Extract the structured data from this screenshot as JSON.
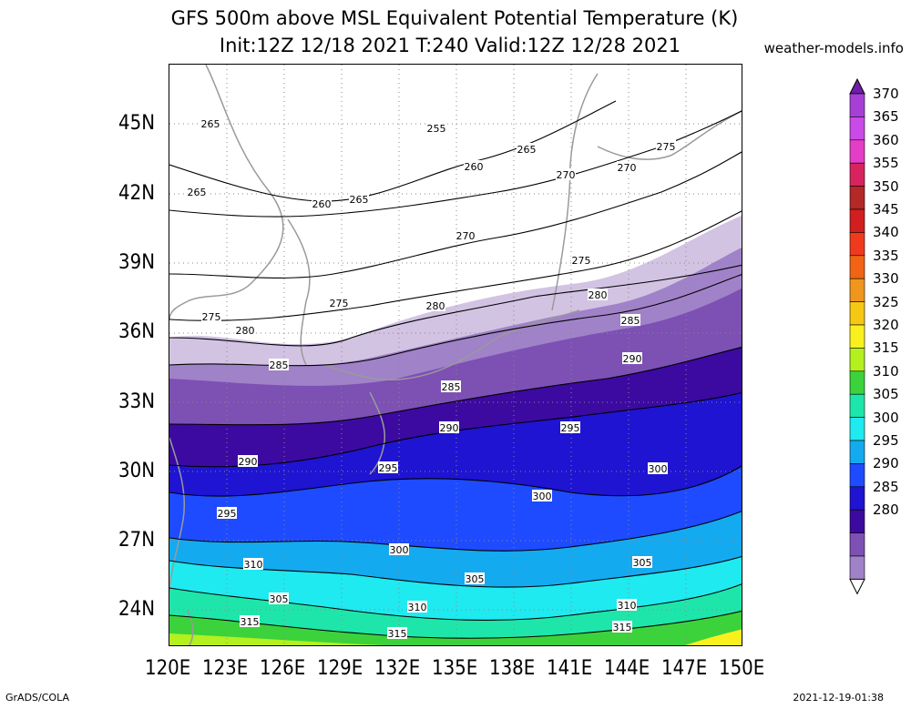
{
  "header": {
    "title_line1": "GFS 500m above MSL Equivalent Potential Temperature (K)",
    "title_line2": "Init:12Z 12/18 2021 T:240 Valid:12Z 12/28 2021",
    "site": "weather-models.info"
  },
  "footer": {
    "left": "GrADS/COLA",
    "right": "2021-12-19-01:38"
  },
  "axes": {
    "lat_labels": [
      "45N",
      "42N",
      "39N",
      "36N",
      "33N",
      "30N",
      "27N",
      "24N"
    ],
    "lon_labels": [
      "120E",
      "123E",
      "126E",
      "129E",
      "132E",
      "135E",
      "138E",
      "141E",
      "144E",
      "147E",
      "150E"
    ]
  },
  "colorbar": {
    "levels": [
      370,
      365,
      360,
      355,
      350,
      345,
      340,
      335,
      330,
      325,
      320,
      315,
      310,
      305,
      300,
      295,
      290,
      285,
      280
    ],
    "colors": [
      "#6e1ea8",
      "#a63fd6",
      "#c94ae6",
      "#e43ec6",
      "#d8245e",
      "#b42828",
      "#d21e1e",
      "#f03a1e",
      "#f06414",
      "#f0961e",
      "#f5c814",
      "#faf01e",
      "#b4f01e",
      "#3cd23c",
      "#1ee6aa",
      "#1eeaf0",
      "#14aaf0",
      "#1e4bff",
      "#1e14d2",
      "#3c0aa0",
      "#7d50b4",
      "#a082c8",
      "#d2c3e3"
    ]
  },
  "contour_labels": [
    "265",
    "265",
    "255",
    "265",
    "260",
    "260",
    "265",
    "270",
    "270",
    "275",
    "270",
    "275",
    "275",
    "280",
    "280",
    "275",
    "280",
    "285",
    "285",
    "285",
    "290",
    "290",
    "295",
    "290",
    "295",
    "295",
    "300",
    "300",
    "300",
    "305",
    "305",
    "305",
    "310",
    "310",
    "310",
    "315",
    "315",
    "315"
  ]
}
